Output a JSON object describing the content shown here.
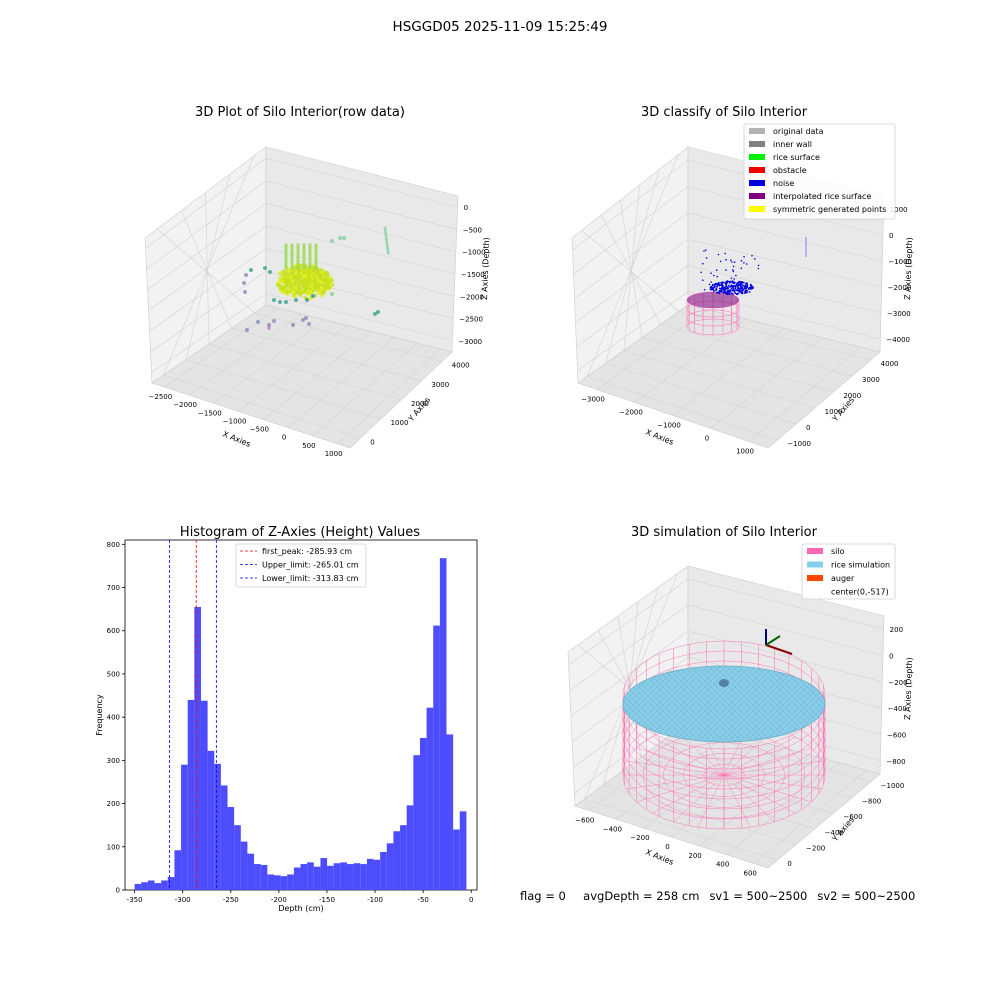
{
  "figure_title": "HSGGD05 2025-11-09 15:25:49",
  "footer": {
    "flag": "flag = 0",
    "avg_depth": "avgDepth = 258 cm",
    "sv1": "sv1 = 500~2500",
    "sv2": "sv2 = 500~2500"
  },
  "chart_data": [
    {
      "id": "raw",
      "type": "scatter",
      "title": "3D Plot of Silo Interior(row data)",
      "xlabel": "X Axies",
      "ylabel": "Y Axies",
      "zlabel": "Z Axies (Depth)",
      "x_ticks": [
        "−2500",
        "−2000",
        "−1500",
        "−1000",
        "−500",
        "0",
        "500",
        "1000"
      ],
      "y_ticks": [
        "0",
        "1000",
        "2000",
        "3000",
        "4000"
      ],
      "z_ticks": [
        "0",
        "−500",
        "−1000",
        "−1500",
        "−2000",
        "−2500",
        "−3000"
      ],
      "colors": {
        "surface": "#c6e01c",
        "mid": "#3aa08e",
        "low": "#8a8ab8"
      }
    },
    {
      "id": "classify",
      "type": "scatter",
      "title": "3D classify of Silo Interior",
      "xlabel": "X Axies",
      "ylabel": "Y Axies",
      "zlabel": "Z Axies (Depth)",
      "x_ticks": [
        "−3000",
        "−2000",
        "−1000",
        "0",
        "1000"
      ],
      "y_ticks": [
        "−1000",
        "0",
        "1000",
        "2000",
        "3000",
        "4000"
      ],
      "z_ticks": [
        "1000",
        "0",
        "−1000",
        "−2000",
        "−3000",
        "−4000"
      ],
      "legend": [
        {
          "label": "original data",
          "color": "#b3b3b3"
        },
        {
          "label": "inner wall",
          "color": "#808080"
        },
        {
          "label": "rice surface",
          "color": "#00ee00"
        },
        {
          "label": "obstacle",
          "color": "#ee0000"
        },
        {
          "label": "noise",
          "color": "#0000dd"
        },
        {
          "label": "interpolated rice surface",
          "color": "#800080"
        },
        {
          "label": "symmetric generated points",
          "color": "#ffff00"
        }
      ],
      "legend_position": "top-right"
    },
    {
      "id": "hist",
      "type": "bar",
      "title": "Histogram of Z-Axies (Height) Values",
      "xlabel": "Depth (cm)",
      "ylabel": "Frequency",
      "xlim": [
        -360,
        6
      ],
      "ylim": [
        0,
        810
      ],
      "x_ticks": [
        -350,
        -300,
        -250,
        -200,
        -150,
        -100,
        -50,
        0
      ],
      "y_ticks": [
        0,
        100,
        200,
        300,
        400,
        500,
        600,
        700,
        800
      ],
      "bar_color": "#4d4dff",
      "bins": {
        "start": -350,
        "width": 6.9,
        "values": [
          14,
          18,
          22,
          16,
          22,
          30,
          92,
          290,
          440,
          655,
          438,
          322,
          292,
          242,
          192,
          150,
          112,
          84,
          60,
          58,
          36,
          34,
          32,
          36,
          52,
          60,
          64,
          54,
          74,
          56,
          62,
          64,
          60,
          62,
          60,
          72,
          70,
          88,
          108,
          136,
          150,
          196,
          312,
          352,
          422,
          612,
          768,
          360,
          140,
          182
        ]
      },
      "vlines": [
        {
          "label": "first_peak: -285.93 cm",
          "x": -285.93,
          "color": "#ff0000"
        },
        {
          "label": "Upper_limit: -265.01 cm",
          "x": -265.01,
          "color": "#0000ff"
        },
        {
          "label": "Lower_limit: -313.83 cm",
          "x": -313.83,
          "color": "#0000ff"
        }
      ],
      "legend_position": "top-center"
    },
    {
      "id": "sim",
      "type": "scatter",
      "title": "3D simulation of Silo Interior",
      "xlabel": "X Axies",
      "ylabel": "Y Axies",
      "zlabel": "Z Axies (Depth)",
      "x_ticks": [
        "−600",
        "−400",
        "−200",
        "0",
        "200",
        "400",
        "600"
      ],
      "y_ticks": [
        "0",
        "−200",
        "−400",
        "−600",
        "−800",
        "−1000"
      ],
      "z_ticks": [
        "200",
        "0",
        "−200",
        "−400",
        "−600",
        "−800"
      ],
      "legend": [
        {
          "label": "silo",
          "color": "#ff69b4"
        },
        {
          "label": "rice simulation",
          "color": "#87ceeb"
        },
        {
          "label": "auger",
          "color": "#ff4500"
        },
        {
          "label": "center(0,-517)",
          "color": ""
        }
      ],
      "legend_position": "top-right"
    }
  ]
}
